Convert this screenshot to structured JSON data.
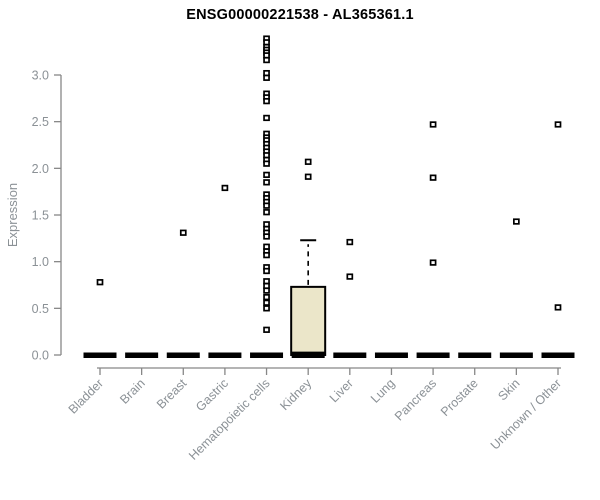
{
  "chart_data": {
    "type": "boxplot",
    "title": "ENSG00000221538 - AL365361.1",
    "xlabel": "",
    "ylabel": "Expression",
    "y_ticks": [
      0.0,
      0.5,
      1.0,
      1.5,
      2.0,
      2.5,
      3.0
    ],
    "y_tick_labels": [
      "0.0",
      "0.5",
      "1.0",
      "1.5",
      "2.0",
      "2.5",
      "3.0"
    ],
    "ylim": [
      0,
      3.45
    ],
    "grid": false,
    "legend": "none",
    "categories": [
      "Bladder",
      "Brain",
      "Breast",
      "Gastric",
      "Hematopoietic cells",
      "Kidney",
      "Liver",
      "Lung",
      "Pancreas",
      "Prostate",
      "Skin",
      "Unknown / Other"
    ],
    "groups": [
      {
        "name": "Bladder",
        "zero_bar": true,
        "box": null,
        "points": [
          0.78
        ]
      },
      {
        "name": "Brain",
        "zero_bar": true,
        "box": null,
        "points": []
      },
      {
        "name": "Breast",
        "zero_bar": true,
        "box": null,
        "points": [
          1.31
        ]
      },
      {
        "name": "Gastric",
        "zero_bar": true,
        "box": null,
        "points": [
          1.79
        ]
      },
      {
        "name": "Hematopoietic cells",
        "zero_bar": true,
        "box": null,
        "points": [
          3.39,
          3.35,
          3.3,
          3.27,
          3.24,
          3.21,
          3.16,
          3.02,
          2.97,
          2.8,
          2.76,
          2.72,
          2.54,
          2.37,
          2.33,
          2.3,
          2.26,
          2.22,
          2.18,
          2.14,
          2.09,
          2.05,
          1.93,
          1.85,
          1.72,
          1.68,
          1.64,
          1.6,
          1.53,
          1.4,
          1.35,
          1.31,
          1.27,
          1.16,
          1.11,
          1.07,
          0.94,
          0.9,
          0.79,
          0.74,
          0.69,
          0.62,
          0.56,
          0.5,
          0.27
        ]
      },
      {
        "name": "Kidney",
        "zero_bar": true,
        "box": {
          "q1": 0.0,
          "median": 0.02,
          "q3": 0.73,
          "whisker_high": 1.23
        },
        "points": [
          2.07,
          1.91
        ]
      },
      {
        "name": "Liver",
        "zero_bar": true,
        "box": null,
        "points": [
          1.21,
          0.84
        ]
      },
      {
        "name": "Lung",
        "zero_bar": true,
        "box": null,
        "points": []
      },
      {
        "name": "Pancreas",
        "zero_bar": true,
        "box": null,
        "points": [
          2.47,
          1.9,
          0.99
        ]
      },
      {
        "name": "Prostate",
        "zero_bar": true,
        "box": null,
        "points": []
      },
      {
        "name": "Skin",
        "zero_bar": true,
        "box": null,
        "points": [
          1.43
        ]
      },
      {
        "name": "Unknown / Other",
        "zero_bar": true,
        "box": null,
        "points": [
          2.47,
          0.51
        ]
      }
    ],
    "colors": {
      "title": "#000000",
      "axis_line": "#878787",
      "tick_label": "#8b9196",
      "category_label": "#8b9196",
      "point_stroke": "#000000",
      "point_fill": "#ffffff",
      "zero_bar": "#000000",
      "box_fill": "#ebe6c9",
      "box_stroke": "#000000"
    }
  }
}
